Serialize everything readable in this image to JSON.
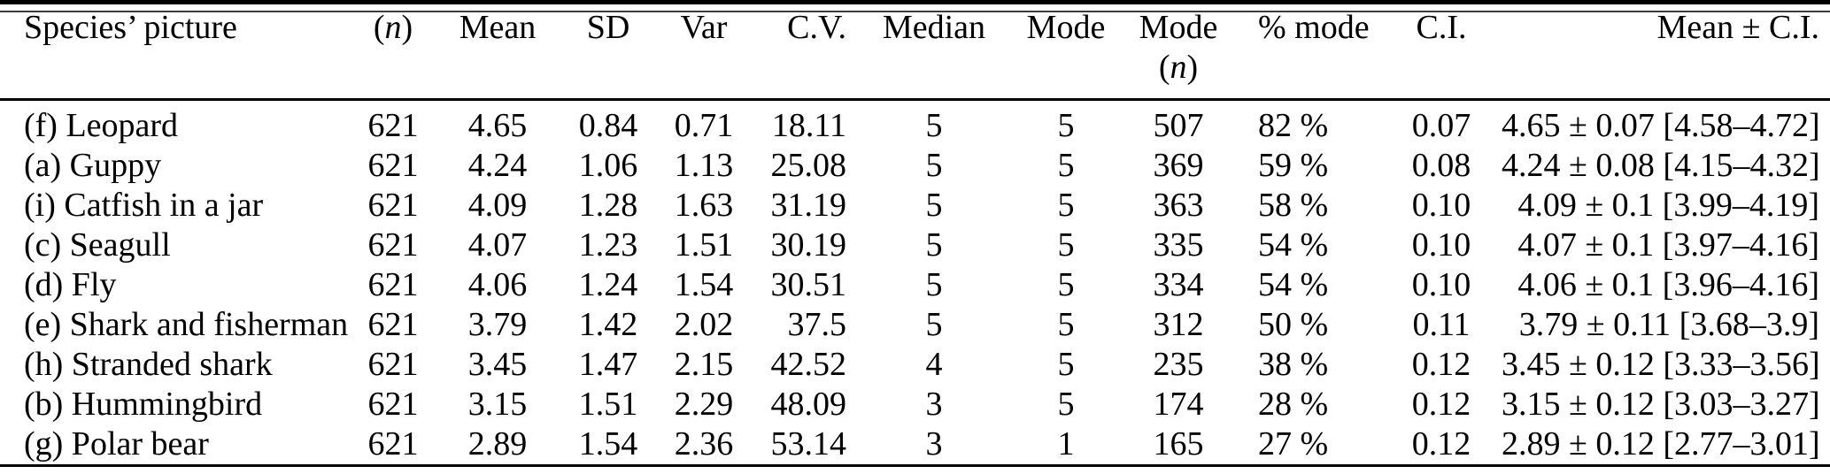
{
  "page": {
    "background_color": "#ffffff",
    "text_color": "#000000",
    "rule_color": "#000000"
  },
  "table": {
    "columns": [
      {
        "id": "species_picture",
        "label": "Species’ picture"
      },
      {
        "id": "n",
        "label": "(n)"
      },
      {
        "id": "mean",
        "label": "Mean"
      },
      {
        "id": "sd",
        "label": "SD"
      },
      {
        "id": "var",
        "label": "Var"
      },
      {
        "id": "cv",
        "label": "C.V."
      },
      {
        "id": "median",
        "label": "Median"
      },
      {
        "id": "mode",
        "label": "Mode"
      },
      {
        "id": "mode_n",
        "label": "Mode",
        "label_line2": "(n)"
      },
      {
        "id": "pct_mode",
        "label": "% mode"
      },
      {
        "id": "ci",
        "label": "C.I."
      },
      {
        "id": "mean_ci",
        "label": "Mean ± C.I."
      }
    ],
    "rows": [
      {
        "cells": [
          "(f) Leopard",
          "621",
          "4.65",
          "0.84",
          "0.71",
          "18.11",
          "5",
          "5",
          "507",
          "82 %",
          "0.07",
          "4.65 ± 0.07 [4.58–4.72]"
        ]
      },
      {
        "cells": [
          "(a) Guppy",
          "621",
          "4.24",
          "1.06",
          "1.13",
          "25.08",
          "5",
          "5",
          "369",
          "59 %",
          "0.08",
          "4.24 ± 0.08 [4.15–4.32]"
        ]
      },
      {
        "cells": [
          "(i) Catfish in a jar",
          "621",
          "4.09",
          "1.28",
          "1.63",
          "31.19",
          "5",
          "5",
          "363",
          "58 %",
          "0.10",
          "4.09 ± 0.1 [3.99–4.19]"
        ]
      },
      {
        "cells": [
          "(c) Seagull",
          "621",
          "4.07",
          "1.23",
          "1.51",
          "30.19",
          "5",
          "5",
          "335",
          "54 %",
          "0.10",
          "4.07 ± 0.1 [3.97–4.16]"
        ]
      },
      {
        "cells": [
          "(d) Fly",
          "621",
          "4.06",
          "1.24",
          "1.54",
          "30.51",
          "5",
          "5",
          "334",
          "54 %",
          "0.10",
          "4.06 ± 0.1 [3.96–4.16]"
        ]
      },
      {
        "cells": [
          "(e) Shark and fisherman",
          "621",
          "3.79",
          "1.42",
          "2.02",
          "37.5",
          "5",
          "5",
          "312",
          "50 %",
          "0.11",
          "3.79 ± 0.11 [3.68–3.9]"
        ]
      },
      {
        "cells": [
          "(h) Stranded shark",
          "621",
          "3.45",
          "1.47",
          "2.15",
          "42.52",
          "4",
          "5",
          "235",
          "38 %",
          "0.12",
          "3.45 ± 0.12 [3.33–3.56]"
        ]
      },
      {
        "cells": [
          "(b) Hummingbird",
          "621",
          "3.15",
          "1.51",
          "2.29",
          "48.09",
          "3",
          "5",
          "174",
          "28 %",
          "0.12",
          "3.15 ± 0.12 [3.03–3.27]"
        ]
      },
      {
        "cells": [
          "(g) Polar bear",
          "621",
          "2.89",
          "1.54",
          "2.36",
          "53.14",
          "3",
          "1",
          "165",
          "27 %",
          "0.12",
          "2.89 ± 0.12 [2.77–3.01]"
        ]
      }
    ]
  }
}
